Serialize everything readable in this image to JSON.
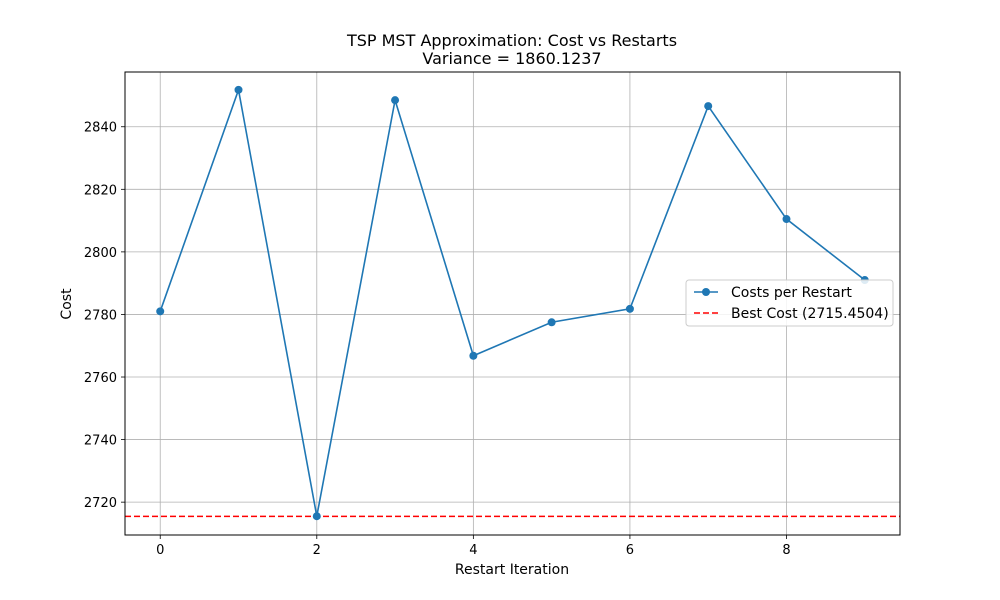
{
  "chart_data": {
    "type": "line",
    "title": "TSP MST Approximation: Cost vs Restarts",
    "subtitle": "Variance = 1860.1237",
    "xlabel": "Restart Iteration",
    "ylabel": "Cost",
    "xlim": [
      -0.45,
      9.45
    ],
    "ylim": [
      2709.5,
      2857.5
    ],
    "xticks": [
      0,
      2,
      4,
      6,
      8
    ],
    "yticks": [
      2720,
      2740,
      2760,
      2780,
      2800,
      2820,
      2840
    ],
    "grid": true,
    "legend_position": "center-right",
    "series": [
      {
        "name": "Costs per Restart",
        "color": "#1f77b4",
        "style": "solid-with-markers",
        "x": [
          0,
          1,
          2,
          3,
          4,
          5,
          6,
          7,
          8,
          9
        ],
        "y": [
          2781.0,
          2851.8,
          2715.5,
          2848.5,
          2766.8,
          2777.5,
          2781.8,
          2846.6,
          2810.5,
          2791.0
        ]
      },
      {
        "name": "Best Cost (2715.4504)",
        "color": "#ff0000",
        "style": "dashed-horizontal",
        "y_value": 2715.4504
      }
    ]
  }
}
